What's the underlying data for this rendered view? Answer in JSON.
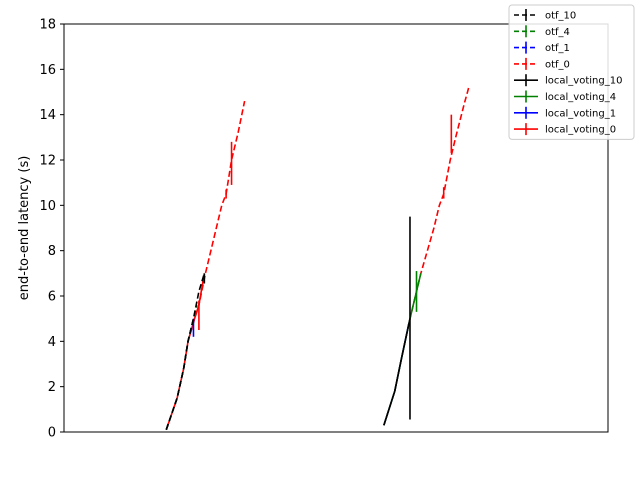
{
  "chart_data": {
    "type": "line",
    "title": "",
    "xlabel": "",
    "ylabel": "end-to-end latency (s)",
    "xlim": [
      0,
      2.5
    ],
    "ylim": [
      0,
      18
    ],
    "yticks": [
      0,
      2,
      4,
      6,
      8,
      10,
      12,
      14,
      16,
      18
    ],
    "grid": false,
    "legend_position": "top-right",
    "series": [
      {
        "name": "otf_10",
        "color": "#000000",
        "dash": true,
        "points": [
          [
            0.47,
            0.1
          ],
          [
            0.52,
            1.5
          ],
          [
            0.55,
            2.8
          ],
          [
            0.57,
            4.0
          ],
          [
            0.595,
            5.0
          ],
          [
            0.62,
            6.2
          ],
          [
            0.645,
            7.0
          ]
        ],
        "errors": [
          [
            0.645,
            6.55,
            7.0
          ]
        ]
      },
      {
        "name": "otf_4",
        "color": "#008000",
        "dash": true,
        "points": [
          [
            0.47,
            0.1
          ],
          [
            0.52,
            1.5
          ],
          [
            0.55,
            2.8
          ],
          [
            0.57,
            4.0
          ],
          [
            0.595,
            5.0
          ],
          [
            0.61,
            5.6
          ]
        ],
        "errors": []
      },
      {
        "name": "otf_1",
        "color": "#0000ff",
        "dash": true,
        "points": [
          [
            0.47,
            0.1
          ],
          [
            0.52,
            1.5
          ],
          [
            0.55,
            2.8
          ],
          [
            0.57,
            4.0
          ],
          [
            0.595,
            5.0
          ]
        ],
        "errors": [
          [
            0.595,
            4.2,
            5.0
          ]
        ]
      },
      {
        "name": "otf_0",
        "color": "#ff0000",
        "dash": true,
        "points": [
          [
            0.47,
            0.1
          ],
          [
            0.52,
            1.5
          ],
          [
            0.55,
            2.8
          ],
          [
            0.57,
            4.0
          ],
          [
            0.6,
            5.0
          ],
          [
            0.62,
            5.6
          ],
          [
            0.65,
            7.0
          ],
          [
            0.675,
            8.0
          ],
          [
            0.7,
            9.0
          ],
          [
            0.725,
            10.0
          ],
          [
            0.745,
            10.5
          ],
          [
            0.77,
            12.0
          ],
          [
            0.8,
            13.2
          ],
          [
            0.83,
            14.6
          ]
        ],
        "errors": [
          [
            0.62,
            4.5,
            5.8
          ],
          [
            0.745,
            10.3,
            10.7
          ],
          [
            0.77,
            10.9,
            12.8
          ]
        ]
      },
      {
        "name": "local_voting_10",
        "color": "#000000",
        "dash": false,
        "points": [
          [
            1.47,
            0.3
          ],
          [
            1.52,
            1.8
          ],
          [
            1.55,
            3.2
          ],
          [
            1.59,
            5.0
          ]
        ],
        "errors": [
          [
            1.59,
            0.55,
            9.5
          ]
        ]
      },
      {
        "name": "local_voting_4",
        "color": "#008000",
        "dash": false,
        "points": [
          [
            1.47,
            0.3
          ],
          [
            1.52,
            1.8
          ],
          [
            1.55,
            3.2
          ],
          [
            1.59,
            5.0
          ],
          [
            1.615,
            6.0
          ],
          [
            1.64,
            7.0
          ]
        ],
        "errors": [
          [
            1.62,
            5.3,
            7.1
          ]
        ]
      },
      {
        "name": "local_voting_1",
        "color": "#0000ff",
        "dash": false,
        "points": [
          [
            1.47,
            0.3
          ],
          [
            1.52,
            1.8
          ],
          [
            1.55,
            3.2
          ],
          [
            1.585,
            4.8
          ]
        ],
        "errors": []
      },
      {
        "name": "local_voting_0",
        "color": "#ff0000",
        "dash": false,
        "points": [
          [
            0.47,
            0.1
          ],
          [
            0.52,
            1.5
          ],
          [
            0.55,
            2.8
          ],
          [
            0.57,
            4.0
          ],
          [
            0.6,
            5.0
          ],
          [
            0.62,
            5.6
          ],
          [
            0.645,
            7.0
          ]
        ],
        "errors": []
      },
      {
        "name": "",
        "color": "#ff0000",
        "dash": true,
        "legend": false,
        "points": [
          [
            1.47,
            0.3
          ],
          [
            1.52,
            1.8
          ],
          [
            1.55,
            3.2
          ],
          [
            1.59,
            5.0
          ],
          [
            1.615,
            6.0
          ],
          [
            1.64,
            7.0
          ],
          [
            1.67,
            8.0
          ],
          [
            1.7,
            9.0
          ],
          [
            1.725,
            10.0
          ],
          [
            1.745,
            10.5
          ],
          [
            1.775,
            12.0
          ],
          [
            1.8,
            13.0
          ],
          [
            1.84,
            14.5
          ],
          [
            1.86,
            15.2
          ]
        ],
        "errors": [
          [
            1.745,
            10.3,
            10.8
          ],
          [
            1.78,
            12.3,
            14.0
          ]
        ]
      }
    ]
  }
}
